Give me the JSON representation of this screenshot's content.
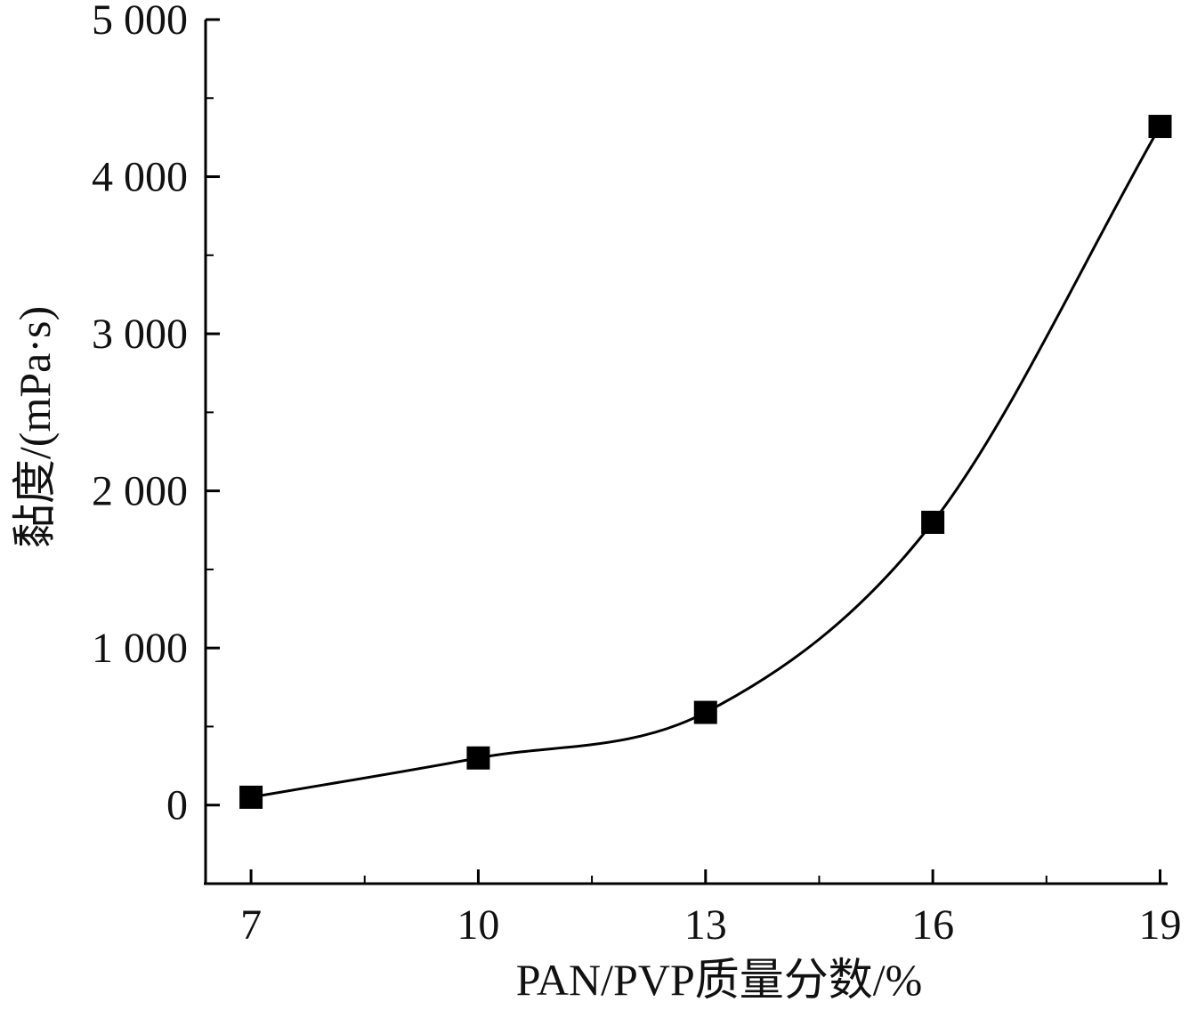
{
  "chart_data": {
    "type": "line",
    "xlabel": "PAN/PVP质量分数/%",
    "ylabel": "黏度/(mPa·s)",
    "x": [
      7,
      10,
      13,
      16,
      19
    ],
    "x_tick_labels": [
      "7",
      "10",
      "13",
      "16",
      "19"
    ],
    "y_ticks": [
      0,
      1000,
      2000,
      3000,
      4000,
      5000
    ],
    "y_tick_labels": [
      "0",
      "1 000",
      "2 000",
      "3 000",
      "4 000",
      "5 000"
    ],
    "xlim": [
      6.4,
      19.1
    ],
    "ylim": [
      -500,
      5000
    ],
    "grid": false,
    "series": [
      {
        "values": [
          50,
          300,
          590,
          1800,
          4320
        ],
        "color": "#000000",
        "marker": "square"
      }
    ]
  }
}
